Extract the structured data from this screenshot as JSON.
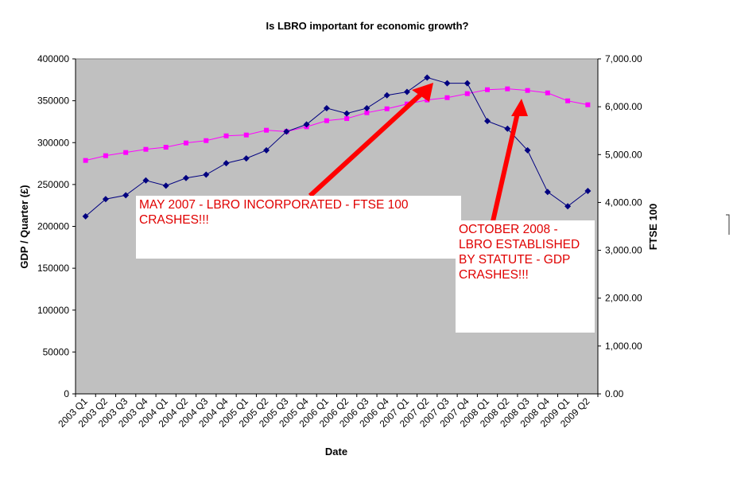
{
  "chart_data": {
    "type": "line",
    "title": "Is LBRO important for economic growth?",
    "xlabel": "Date",
    "ylabel": "GDP / Quarter (£)",
    "y2label": "FTSE 100",
    "ylim": [
      0,
      400000
    ],
    "y2lim": [
      0,
      7000
    ],
    "yticks": [
      "0",
      "50000",
      "100000",
      "150000",
      "200000",
      "250000",
      "300000",
      "350000",
      "400000"
    ],
    "y2ticks": [
      "0.00",
      "1,000.00",
      "2,000.00",
      "3,000.00",
      "4,000.00",
      "5,000.00",
      "6,000.00",
      "7,000.00"
    ],
    "grid": false,
    "legend": "none",
    "categories": [
      "2003 Q1",
      "2003 Q2",
      "2003 Q3",
      "2003 Q4",
      "2004 Q1",
      "2004 Q2",
      "2004 Q3",
      "2004 Q4",
      "2005 Q1",
      "2005 Q2",
      "2005 Q3",
      "2005 Q4",
      "2006 Q1",
      "2006 Q2",
      "2006 Q3",
      "2006 Q4",
      "2007 Q1",
      "2007 Q2",
      "2007 Q3",
      "2007 Q4",
      "2008 Q1",
      "2008 Q2",
      "2008 Q3",
      "2008 Q4",
      "2009 Q1",
      "2009 Q2"
    ],
    "series": [
      {
        "axis": "left",
        "color": "#FF00FF",
        "marker": "square",
        "values": [
          278700,
          284400,
          288200,
          292000,
          294500,
          299600,
          302400,
          308100,
          309100,
          314800,
          313200,
          318900,
          326200,
          328700,
          335700,
          340400,
          346100,
          350900,
          353700,
          358500,
          363200,
          364200,
          362300,
          359400,
          349900,
          345200
        ]
      },
      {
        "axis": "right",
        "color": "#000080",
        "marker": "diamond",
        "values": [
          3710,
          4070,
          4150,
          4460,
          4350,
          4510,
          4580,
          4820,
          4920,
          5090,
          5480,
          5630,
          5970,
          5860,
          5970,
          6240,
          6310,
          6610,
          6490,
          6490,
          5700,
          5540,
          5090,
          4220,
          3920,
          4240
        ]
      }
    ],
    "annotations": [
      {
        "text": "MAY 2007 - LBRO INCORPORATED - FTSE 100 CRASHES!!!",
        "points_to": "2007 Q2"
      },
      {
        "text": "OCTOBER 2008 - LBRO ESTABLISHED BY STATUTE - GDP CRASHES!!!",
        "points_to": "2008 Q3"
      }
    ],
    "colors": {
      "plot_background": "#C0C0C0",
      "annotation_text": "#E00000",
      "arrow": "#FF0000"
    }
  }
}
